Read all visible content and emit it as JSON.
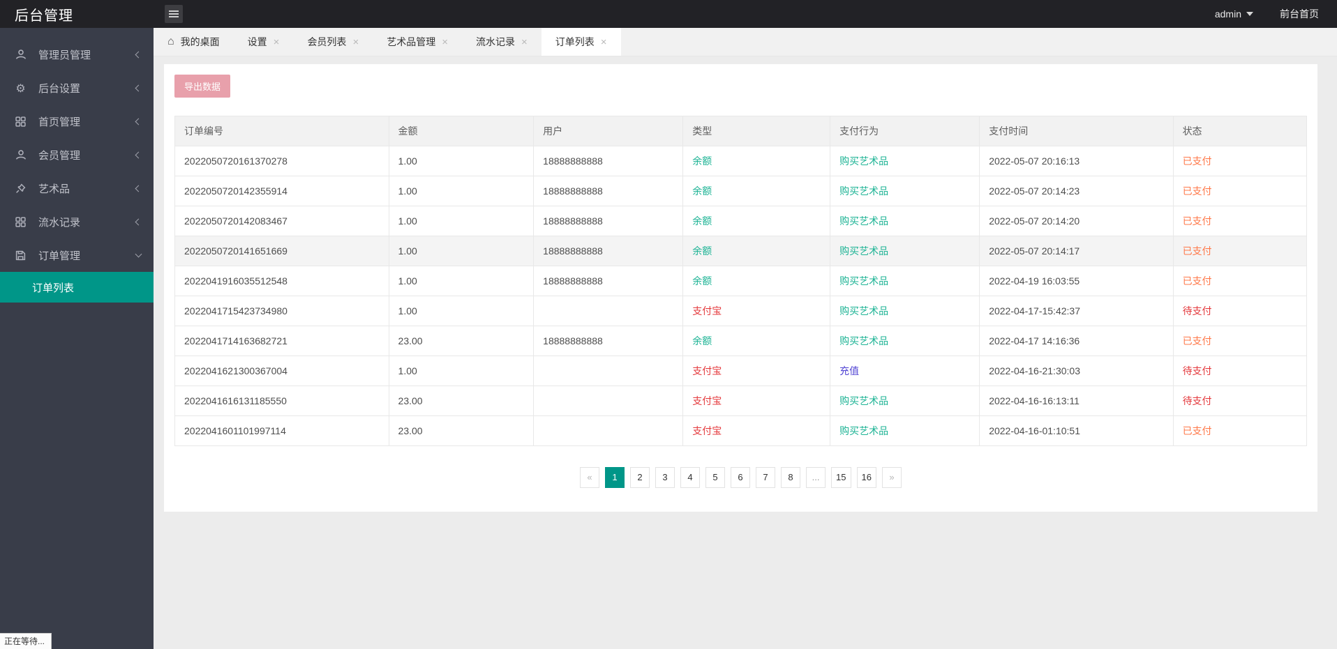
{
  "colors": {
    "accent": "#009688",
    "button_pink": "#e8a0ab",
    "teal": "#1cb394",
    "red": "#e4393c",
    "indigo": "#5144d3",
    "orange": "#ff7849"
  },
  "header": {
    "title": "后台管理",
    "user": "admin",
    "front_link": "前台首页"
  },
  "sidebar": {
    "items": [
      {
        "label": "管理员管理",
        "icon": "admin-user",
        "chevron": "left"
      },
      {
        "label": "后台设置",
        "icon": "gear",
        "chevron": "left"
      },
      {
        "label": "首页管理",
        "icon": "grid",
        "chevron": "left"
      },
      {
        "label": "会员管理",
        "icon": "user",
        "chevron": "left"
      },
      {
        "label": "艺术品",
        "icon": "pin",
        "chevron": "left"
      },
      {
        "label": "流水记录",
        "icon": "grid",
        "chevron": "left"
      },
      {
        "label": "订单管理",
        "icon": "floppy",
        "chevron": "down",
        "open": true
      }
    ],
    "submenu": {
      "label": "订单列表",
      "active": true
    }
  },
  "tabs": [
    {
      "label": "我的桌面",
      "home": true,
      "closable": false,
      "active": false
    },
    {
      "label": "设置",
      "home": false,
      "closable": true,
      "active": false
    },
    {
      "label": "会员列表",
      "home": false,
      "closable": true,
      "active": false
    },
    {
      "label": "艺术品管理",
      "home": false,
      "closable": true,
      "active": false
    },
    {
      "label": "流水记录",
      "home": false,
      "closable": true,
      "active": false
    },
    {
      "label": "订单列表",
      "home": false,
      "closable": true,
      "active": true
    }
  ],
  "toolbar": {
    "export_label": "导出数据"
  },
  "table": {
    "columns": [
      "订单编号",
      "金额",
      "用户",
      "类型",
      "支付行为",
      "支付时间",
      "状态"
    ],
    "rows": [
      {
        "no": "2022050720161370278",
        "amount": "1.00",
        "user": "18888888888",
        "type": "余额",
        "typeColor": "teal",
        "action": "购买艺术品",
        "actionColor": "teal",
        "time": "2022-05-07 20:16:13",
        "status": "已支付",
        "statusColor": "orange",
        "shaded": false
      },
      {
        "no": "2022050720142355914",
        "amount": "1.00",
        "user": "18888888888",
        "type": "余额",
        "typeColor": "teal",
        "action": "购买艺术品",
        "actionColor": "teal",
        "time": "2022-05-07 20:14:23",
        "status": "已支付",
        "statusColor": "orange",
        "shaded": false
      },
      {
        "no": "2022050720142083467",
        "amount": "1.00",
        "user": "18888888888",
        "type": "余额",
        "typeColor": "teal",
        "action": "购买艺术品",
        "actionColor": "teal",
        "time": "2022-05-07 20:14:20",
        "status": "已支付",
        "statusColor": "orange",
        "shaded": false
      },
      {
        "no": "2022050720141651669",
        "amount": "1.00",
        "user": "18888888888",
        "type": "余额",
        "typeColor": "teal",
        "action": "购买艺术品",
        "actionColor": "teal",
        "time": "2022-05-07 20:14:17",
        "status": "已支付",
        "statusColor": "orange",
        "shaded": true
      },
      {
        "no": "2022041916035512548",
        "amount": "1.00",
        "user": "18888888888",
        "type": "余额",
        "typeColor": "teal",
        "action": "购买艺术品",
        "actionColor": "teal",
        "time": "2022-04-19 16:03:55",
        "status": "已支付",
        "statusColor": "orange",
        "shaded": false
      },
      {
        "no": "2022041715423734980",
        "amount": "1.00",
        "user": "",
        "type": "支付宝",
        "typeColor": "red",
        "action": "购买艺术品",
        "actionColor": "teal",
        "time": "2022-04-17-15:42:37",
        "status": "待支付",
        "statusColor": "red",
        "shaded": false
      },
      {
        "no": "2022041714163682721",
        "amount": "23.00",
        "user": "18888888888",
        "type": "余额",
        "typeColor": "teal",
        "action": "购买艺术品",
        "actionColor": "teal",
        "time": "2022-04-17 14:16:36",
        "status": "已支付",
        "statusColor": "orange",
        "shaded": false
      },
      {
        "no": "2022041621300367004",
        "amount": "1.00",
        "user": "",
        "type": "支付宝",
        "typeColor": "red",
        "action": "充值",
        "actionColor": "indigo",
        "time": "2022-04-16-21:30:03",
        "status": "待支付",
        "statusColor": "red",
        "shaded": false
      },
      {
        "no": "2022041616131185550",
        "amount": "23.00",
        "user": "",
        "type": "支付宝",
        "typeColor": "red",
        "action": "购买艺术品",
        "actionColor": "teal",
        "time": "2022-04-16-16:13:11",
        "status": "待支付",
        "statusColor": "red",
        "shaded": false
      },
      {
        "no": "2022041601101997114",
        "amount": "23.00",
        "user": "",
        "type": "支付宝",
        "typeColor": "red",
        "action": "购买艺术品",
        "actionColor": "teal",
        "time": "2022-04-16-01:10:51",
        "status": "已支付",
        "statusColor": "orange",
        "shaded": false
      }
    ]
  },
  "pagination": {
    "items": [
      {
        "label": "«",
        "kind": "nav"
      },
      {
        "label": "1",
        "kind": "page",
        "active": true
      },
      {
        "label": "2",
        "kind": "page"
      },
      {
        "label": "3",
        "kind": "page"
      },
      {
        "label": "4",
        "kind": "page"
      },
      {
        "label": "5",
        "kind": "page"
      },
      {
        "label": "6",
        "kind": "page"
      },
      {
        "label": "7",
        "kind": "page"
      },
      {
        "label": "8",
        "kind": "page"
      },
      {
        "label": "...",
        "kind": "ellipsis"
      },
      {
        "label": "15",
        "kind": "page"
      },
      {
        "label": "16",
        "kind": "page"
      },
      {
        "label": "»",
        "kind": "nav"
      }
    ]
  },
  "statusbar": {
    "text": "正在等待..."
  }
}
